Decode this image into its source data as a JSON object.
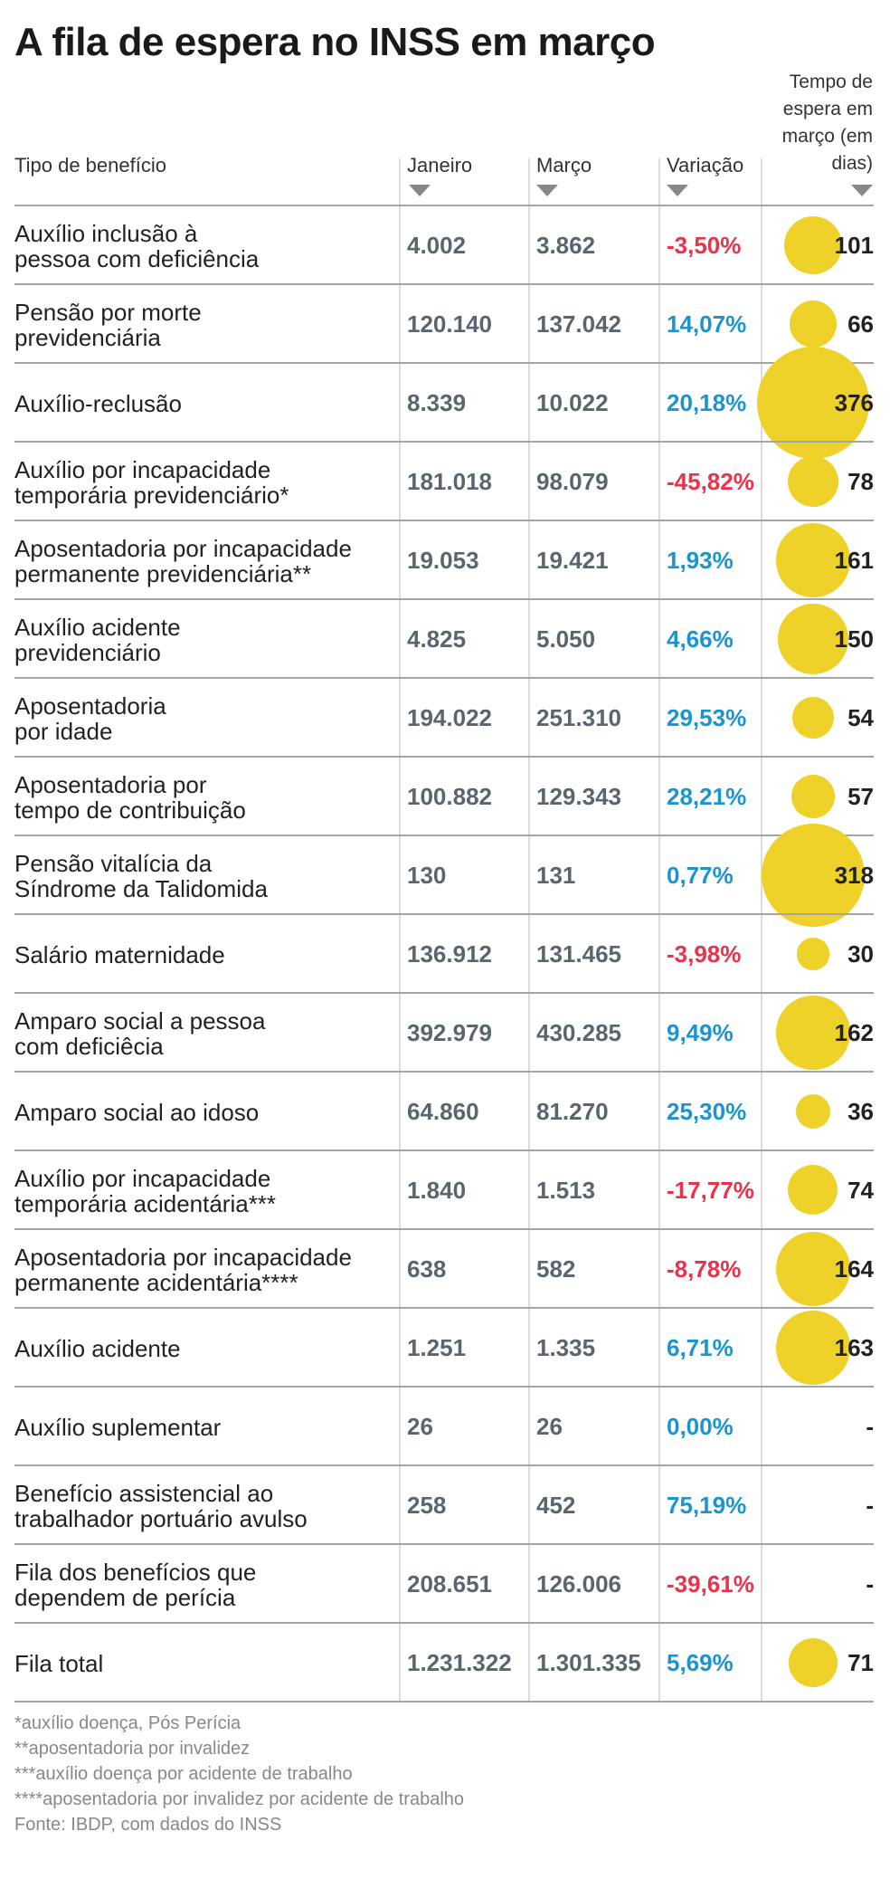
{
  "title": "A fila de espera no INSS em março",
  "headers": {
    "tipo": "Tipo de benefício",
    "janeiro": "Janeiro",
    "marco": "Março",
    "variacao": "Variação",
    "tempo": "Tempo de espera em março (em dias)"
  },
  "colors": {
    "positive": "#1b95d1",
    "negative": "#e8334a",
    "bubble": "#eed229"
  },
  "chart_data": {
    "type": "table",
    "title": "A fila de espera no INSS em março",
    "columns": [
      "Tipo de benefício",
      "Janeiro",
      "Março",
      "Variação",
      "Tempo de espera em março (em dias)"
    ],
    "rows": [
      {
        "name": "Auxílio inclusão à\npessoa com deficiência",
        "jan": "4.002",
        "mar": "3.862",
        "var": "-3,50%",
        "neg": true,
        "days": "101",
        "days_value": 101
      },
      {
        "name": "Pensão por morte\nprevidenciária",
        "jan": "120.140",
        "mar": "137.042",
        "var": "14,07%",
        "neg": false,
        "days": "66",
        "days_value": 66
      },
      {
        "name": "Auxílio-reclusão",
        "jan": "8.339",
        "mar": "10.022",
        "var": "20,18%",
        "neg": false,
        "days": "376",
        "days_value": 376
      },
      {
        "name": "Auxílio por incapacidade\ntemporária previdenciário*",
        "jan": "181.018",
        "mar": "98.079",
        "var": "-45,82%",
        "neg": true,
        "days": "78",
        "days_value": 78
      },
      {
        "name": "Aposentadoria por incapacidade\npermanente previdenciária**",
        "jan": "19.053",
        "mar": "19.421",
        "var": "1,93%",
        "neg": false,
        "days": "161",
        "days_value": 161
      },
      {
        "name": "Auxílio acidente\nprevidenciário",
        "jan": "4.825",
        "mar": "5.050",
        "var": "4,66%",
        "neg": false,
        "days": "150",
        "days_value": 150
      },
      {
        "name": "Aposentadoria\npor idade",
        "jan": "194.022",
        "mar": "251.310",
        "var": "29,53%",
        "neg": false,
        "days": "54",
        "days_value": 54
      },
      {
        "name": "Aposentadoria por\ntempo de contribuição",
        "jan": "100.882",
        "mar": "129.343",
        "var": "28,21%",
        "neg": false,
        "days": "57",
        "days_value": 57
      },
      {
        "name": "Pensão vitalícia da\nSíndrome da Talidomida",
        "jan": "130",
        "mar": "131",
        "var": "0,77%",
        "neg": false,
        "days": "318",
        "days_value": 318
      },
      {
        "name": "Salário maternidade",
        "jan": "136.912",
        "mar": "131.465",
        "var": "-3,98%",
        "neg": true,
        "days": "30",
        "days_value": 30
      },
      {
        "name": "Amparo social a pessoa\ncom deficiêcia",
        "jan": "392.979",
        "mar": "430.285",
        "var": "9,49%",
        "neg": false,
        "days": "162",
        "days_value": 162
      },
      {
        "name": "Amparo social ao idoso",
        "jan": "64.860",
        "mar": "81.270",
        "var": "25,30%",
        "neg": false,
        "days": "36",
        "days_value": 36
      },
      {
        "name": "Auxílio por incapacidade\ntemporária acidentária***",
        "jan": "1.840",
        "mar": "1.513",
        "var": "-17,77%",
        "neg": true,
        "days": "74",
        "days_value": 74
      },
      {
        "name": "Aposentadoria por incapacidade\npermanente acidentária****",
        "jan": "638",
        "mar": "582",
        "var": "-8,78%",
        "neg": true,
        "days": "164",
        "days_value": 164
      },
      {
        "name": "Auxílio acidente",
        "jan": "1.251",
        "mar": "1.335",
        "var": "6,71%",
        "neg": false,
        "days": "163",
        "days_value": 163
      },
      {
        "name": "Auxílio suplementar",
        "jan": "26",
        "mar": "26",
        "var": "0,00%",
        "neg": false,
        "days": "-",
        "days_value": null
      },
      {
        "name": "Benefício assistencial ao\ntrabalhador portuário avulso",
        "jan": "258",
        "mar": "452",
        "var": "75,19%",
        "neg": false,
        "days": "-",
        "days_value": null
      },
      {
        "name": "Fila dos benefícios que\ndependem de perícia",
        "jan": "208.651",
        "mar": "126.006",
        "var": "-39,61%",
        "neg": true,
        "days": "-",
        "days_value": null
      },
      {
        "name": "Fila total",
        "jan": "1.231.322",
        "mar": "1.301.335",
        "var": "5,69%",
        "neg": false,
        "days": "71",
        "days_value": 71
      }
    ]
  },
  "notes": [
    "*auxílio doença, Pós Perícia",
    "**aposentadoria por invalidez",
    "***auxílio doença por acidente de trabalho",
    "****aposentadoria por invalidez por acidente de trabalho",
    "Fonte: IBDP, com dados do INSS"
  ]
}
